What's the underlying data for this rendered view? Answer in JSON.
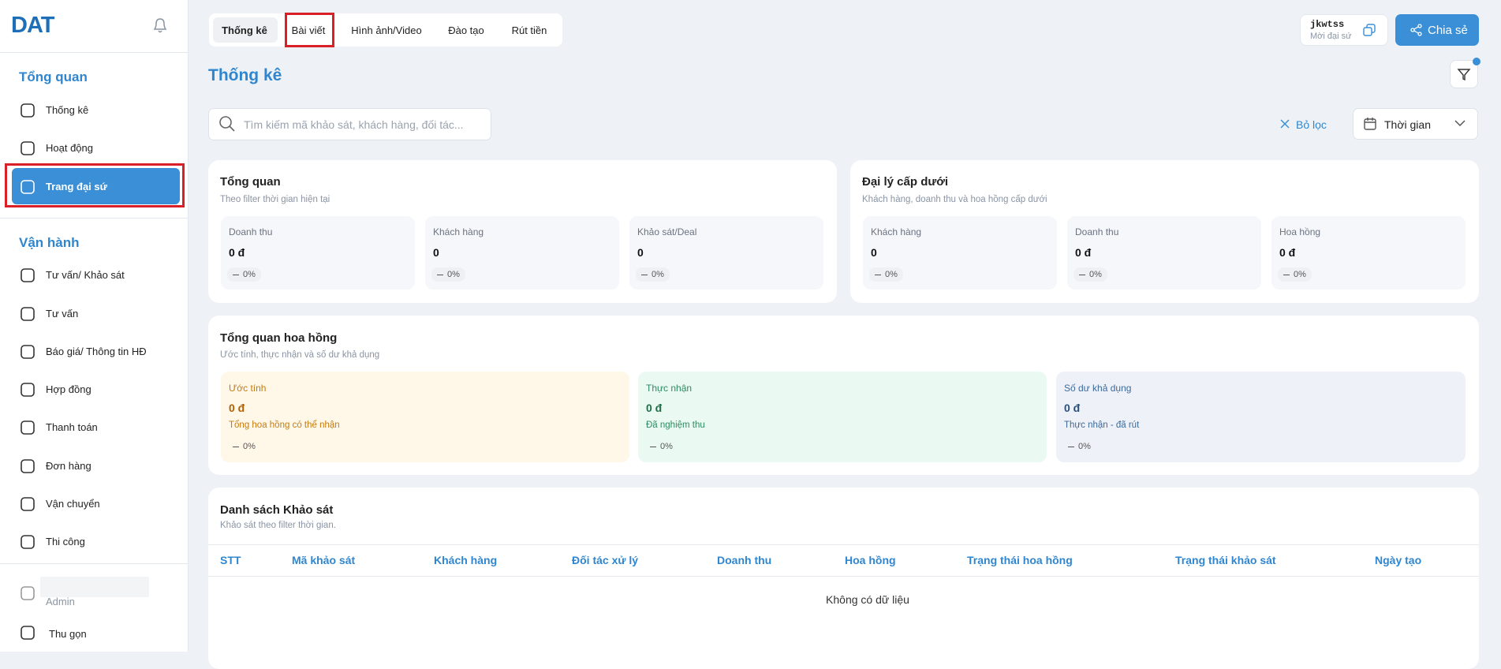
{
  "sidebar": {
    "logo": "DAT",
    "sections": [
      {
        "title": "Tổng quan",
        "items": [
          "Thống kê",
          "Hoạt động",
          "Trang đại sứ"
        ]
      },
      {
        "title": "Vận hành",
        "items": [
          "Tư vấn/ Khảo sát",
          "Tư vấn",
          "Báo giá/ Thông tin HĐ",
          "Hợp đồng",
          "Thanh toán",
          "Đơn hàng",
          "Vận chuyển",
          "Thi công"
        ]
      }
    ],
    "user": "Admin",
    "collapse": "Thu gọn"
  },
  "tabs": [
    "Thống kê",
    "Bài viết",
    "Hình ảnh/Video",
    "Đào tạo",
    "Rút tiền"
  ],
  "account": {
    "code": "jkwtss",
    "role": "Mời đại sứ"
  },
  "share": "Chia sẻ",
  "page_title": "Thống kê",
  "search_placeholder": "Tìm kiếm mã khảo sát, khách hàng, đối tác...",
  "clear_filter": "Bỏ lọc",
  "time_filter": "Thời gian",
  "overview": {
    "title": "Tổng quan",
    "subtitle": "Theo filter thời gian hiện tại",
    "stats": [
      {
        "label": "Doanh thu",
        "value": "0 đ",
        "change": "0%"
      },
      {
        "label": "Khách hàng",
        "value": "0",
        "change": "0%"
      },
      {
        "label": "Khảo sát/Deal",
        "value": "0",
        "change": "0%"
      }
    ]
  },
  "sub_agents": {
    "title": "Đại lý cấp dưới",
    "subtitle": "Khách hàng, doanh thu và hoa hồng cấp dưới",
    "stats": [
      {
        "label": "Khách hàng",
        "value": "0",
        "change": "0%"
      },
      {
        "label": "Doanh thu",
        "value": "0 đ",
        "change": "0%"
      },
      {
        "label": "Hoa hồng",
        "value": "0 đ",
        "change": "0%"
      }
    ]
  },
  "commission": {
    "title": "Tổng quan hoa hồng",
    "subtitle": "Ước tính, thực nhận và số dư khả dụng",
    "cards": [
      {
        "label": "Ước tính",
        "value": "0 đ",
        "note": "Tổng hoa hồng có thể nhận",
        "change": "0%"
      },
      {
        "label": "Thực nhận",
        "value": "0 đ",
        "note": "Đã nghiệm thu",
        "change": "0%"
      },
      {
        "label": "Số dư khả dụng",
        "value": "0 đ",
        "note": "Thực nhận - đã rút",
        "change": "0%"
      }
    ]
  },
  "survey_list": {
    "title": "Danh sách Khảo sát",
    "subtitle": "Khảo sát theo filter thời gian.",
    "columns": [
      "STT",
      "Mã khảo sát",
      "Khách hàng",
      "Đối tác xử lý",
      "Doanh thu",
      "Hoa hồng",
      "Trạng thái hoa hồng",
      "Trạng thái khảo sát",
      "Ngày tạo"
    ],
    "empty": "Không có dữ liệu"
  }
}
